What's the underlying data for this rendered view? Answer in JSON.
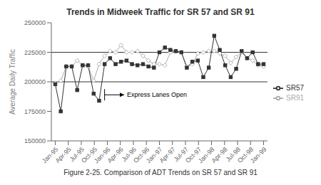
{
  "chart_data": {
    "type": "line",
    "title": "Trends in Midweek Traffic for SR 57 and SR 91",
    "ylabel": "Average Daily Traffic",
    "caption": "Figure 2-25. Comparison of ADT Trends on SR 57 and SR 91",
    "x": [
      0,
      0.42105263157894735,
      0.8421052631578947,
      1.263157894736842,
      1.6842105263157894,
      2.1052631578947367,
      2.526315789473684,
      2.9473684210526314,
      3.3684210526315788,
      3.789473684210526,
      4.2105263157894735,
      4.631578947368421,
      5.052631578947368,
      5.473684210526316,
      5.894736842105263,
      6.315789473684211,
      6.7368421052631575,
      7.157894736842105,
      7.578947368421052,
      8,
      8.421052631578947,
      8.842105263157894,
      9.263157894736842,
      9.68421052631579,
      10.105263157894736,
      10.526315789473685,
      10.947368421052632,
      11.368421052631579,
      11.789473684210526,
      12.210526315789473,
      12.631578947368421,
      13.052631578947368,
      13.473684210526315,
      13.894736842105264,
      14.31578947368421,
      14.736842105263158,
      15.157894736842104,
      15.578947368421051,
      16
    ],
    "xlim": [
      -0.3,
      16.3
    ],
    "xticks": [
      {
        "value": 0,
        "label": "Jan-95"
      },
      {
        "value": 1,
        "label": "Apr-95"
      },
      {
        "value": 2,
        "label": "Jul-95"
      },
      {
        "value": 3,
        "label": "Oct-95"
      },
      {
        "value": 4,
        "label": "Jan-96"
      },
      {
        "value": 5,
        "label": "Apr-96"
      },
      {
        "value": 6,
        "label": "Jul-96"
      },
      {
        "value": 7,
        "label": "Oct-96"
      },
      {
        "value": 8,
        "label": "Jan-97"
      },
      {
        "value": 9,
        "label": "Apr-97"
      },
      {
        "value": 10,
        "label": "Jul-97"
      },
      {
        "value": 11,
        "label": "Oct-97"
      },
      {
        "value": 12,
        "label": "Jan-98"
      },
      {
        "value": 13,
        "label": "Apr-98"
      },
      {
        "value": 14,
        "label": "Jul-98"
      },
      {
        "value": 15,
        "label": "Oct-98"
      },
      {
        "value": 16,
        "label": "Jan-99"
      }
    ],
    "ylim": [
      150000,
      250000
    ],
    "yticks": [
      150000,
      175000,
      200000,
      225000,
      250000
    ],
    "series": [
      {
        "name": "SR91",
        "color": "#aaaaaa",
        "marker": "diamond",
        "values": [
          199000,
          201000,
          213000,
          213000,
          218000,
          214000,
          213000,
          201000,
          215000,
          222000,
          226000,
          225000,
          231000,
          225000,
          225000,
          226000,
          222000,
          218000,
          215000,
          215000,
          214000,
          225000,
          226000,
          225000,
          213000,
          215000,
          224000,
          225000,
          226000,
          226000,
          224000,
          222000,
          216000,
          221000,
          225000,
          220000,
          218000,
          214000,
          213000
        ]
      },
      {
        "name": "SR57",
        "color": "#333333",
        "marker": "square",
        "values": [
          198000,
          175000,
          213000,
          213000,
          193000,
          214000,
          214000,
          190000,
          184000,
          215000,
          220000,
          215000,
          217000,
          218000,
          215000,
          214000,
          215000,
          213000,
          212000,
          225000,
          229000,
          227000,
          226000,
          225000,
          212000,
          217000,
          218000,
          204000,
          212000,
          239000,
          227000,
          214000,
          204000,
          211000,
          226000,
          220000,
          225000,
          215000,
          215000
        ]
      }
    ],
    "hlines": [
      200000,
      225000
    ],
    "annotations": [
      {
        "text": "Express Lanes Open",
        "x": 3.789473684210526,
        "x_end": 5.289473684210526,
        "y": 189000
      }
    ],
    "grid": false,
    "legend": "right"
  }
}
